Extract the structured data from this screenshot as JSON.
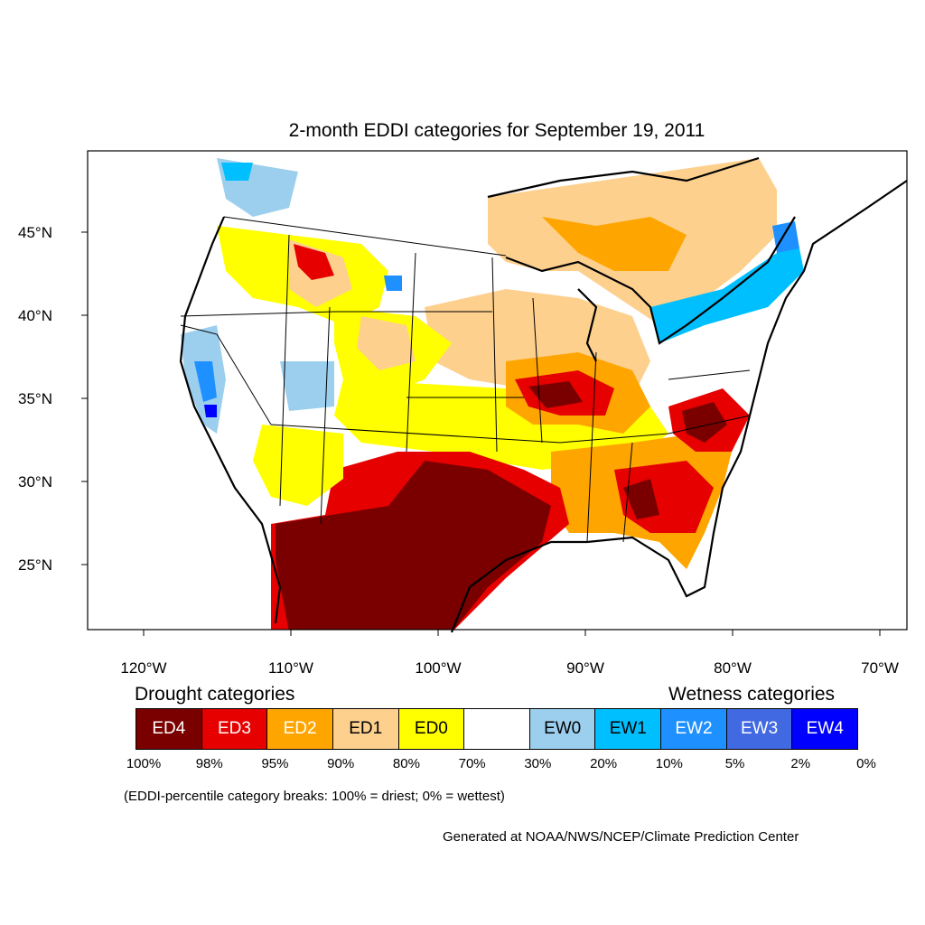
{
  "title": "2-month EDDI categories for September 19, 2011",
  "axes": {
    "lat_labels": [
      "45°N",
      "40°N",
      "35°N",
      "30°N",
      "25°N"
    ],
    "lon_labels": [
      "120°W",
      "110°W",
      "100°W",
      "90°W",
      "80°W",
      "70°W"
    ]
  },
  "legend": {
    "drought_heading": "Drought categories",
    "wetness_heading": "Wetness categories",
    "categories": [
      {
        "label": "ED4",
        "color": "#7a0000",
        "text_color": "#ffffff"
      },
      {
        "label": "ED3",
        "color": "#e60000",
        "text_color": "#ffffff"
      },
      {
        "label": "ED2",
        "color": "#ffa500",
        "text_color": "#ffffff"
      },
      {
        "label": "ED1",
        "color": "#fdd08e",
        "text_color": "#000000"
      },
      {
        "label": "ED0",
        "color": "#ffff00",
        "text_color": "#000000"
      },
      {
        "label": "",
        "color": "#ffffff",
        "text_color": "#000000"
      },
      {
        "label": "EW0",
        "color": "#9ccfee",
        "text_color": "#000000"
      },
      {
        "label": "EW1",
        "color": "#00bfff",
        "text_color": "#000000"
      },
      {
        "label": "EW2",
        "color": "#1e90ff",
        "text_color": "#ffffff"
      },
      {
        "label": "EW3",
        "color": "#4169e1",
        "text_color": "#ffffff"
      },
      {
        "label": "EW4",
        "color": "#0000ff",
        "text_color": "#ffffff"
      }
    ],
    "breaks": [
      "100%",
      "98%",
      "95%",
      "90%",
      "80%",
      "70%",
      "30%",
      "20%",
      "10%",
      "5%",
      "2%",
      "0%"
    ]
  },
  "note": "(EDDI-percentile category breaks: 100% = driest; 0% = wettest)",
  "credit": "Generated at NOAA/NWS/NCEP/Climate Prediction Center"
}
